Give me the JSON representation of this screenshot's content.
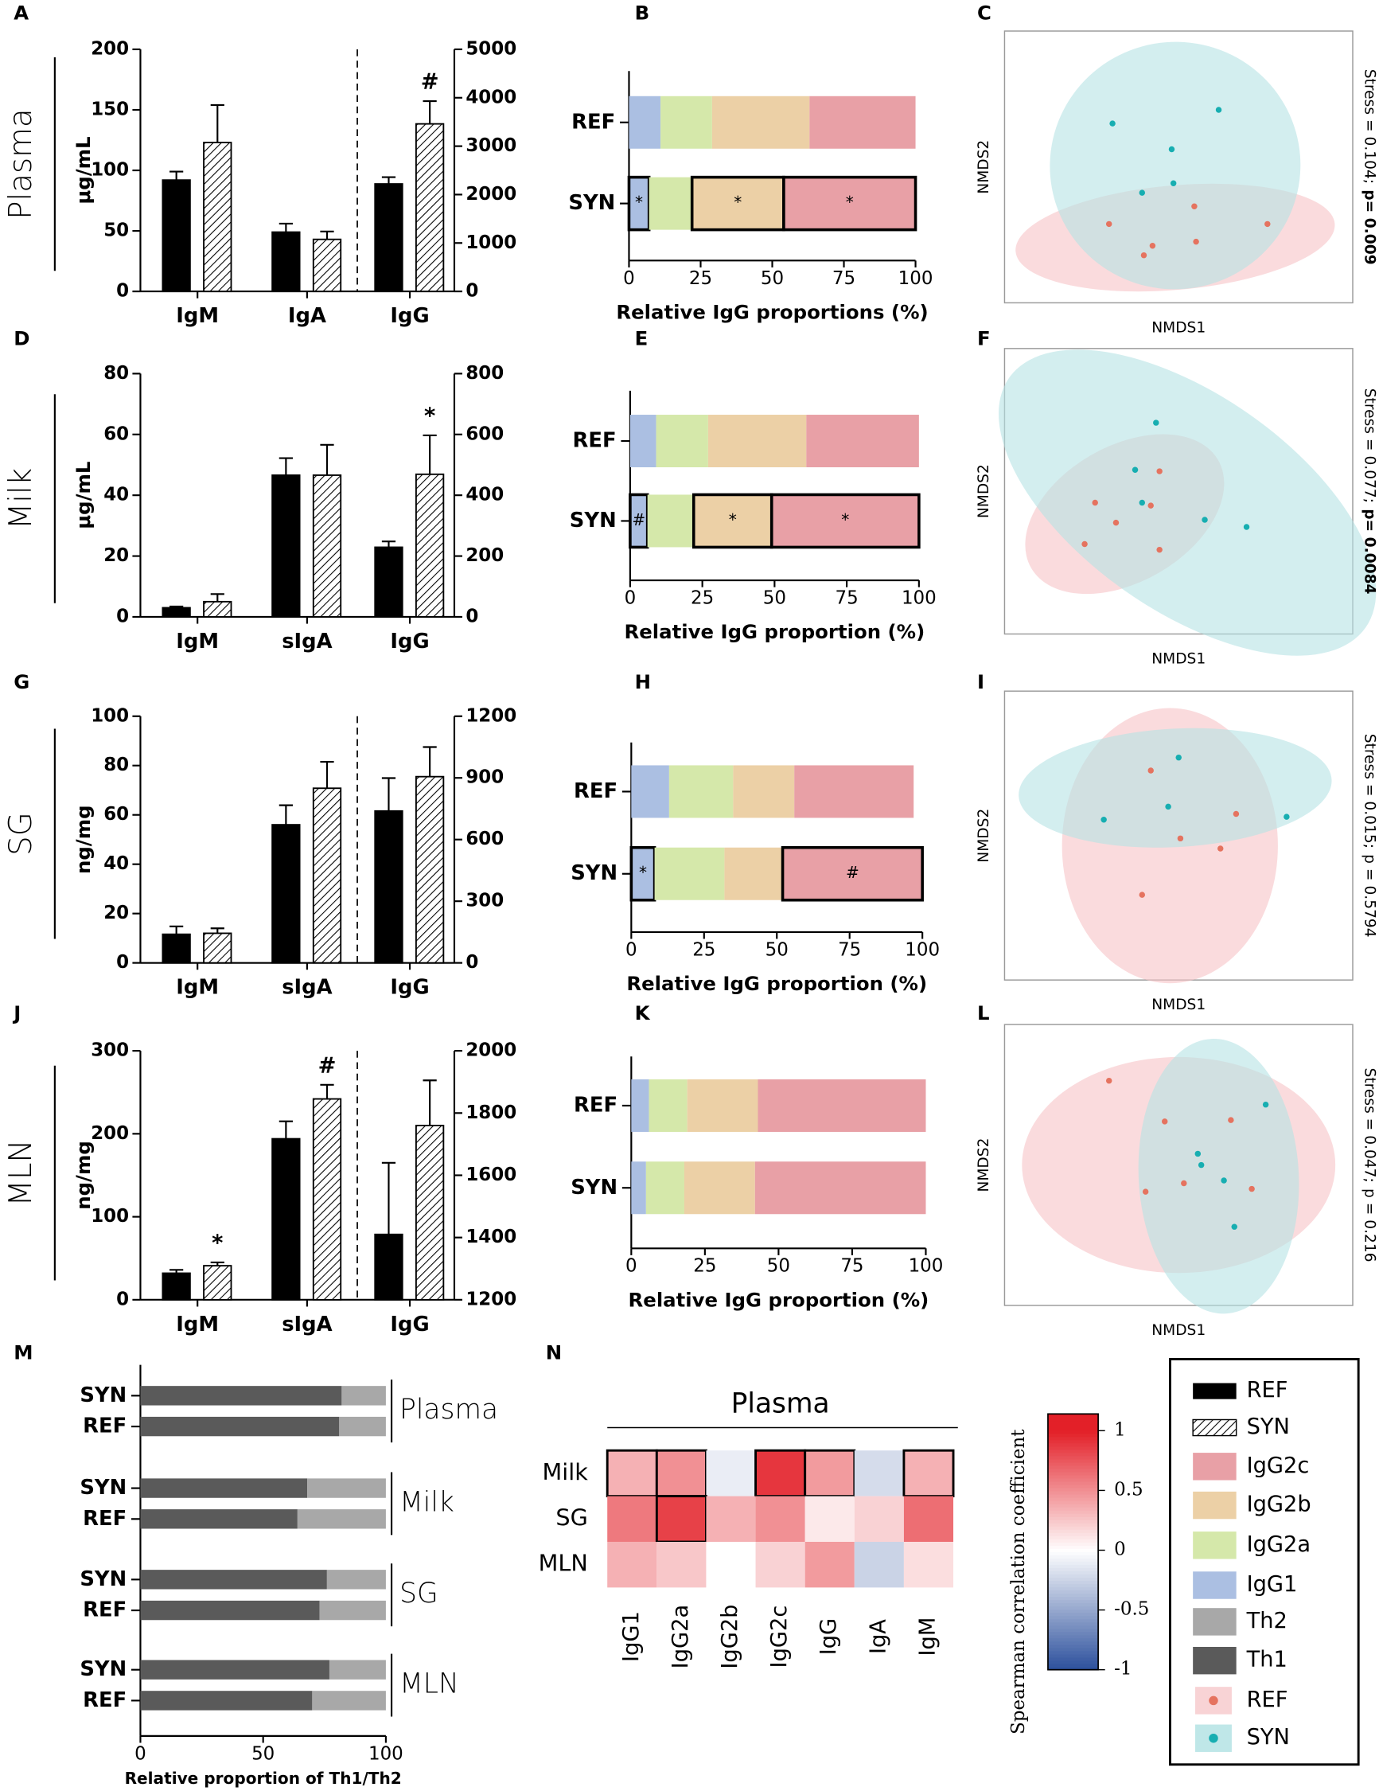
{
  "chart_data": [
    {
      "panel": "A",
      "type": "bar",
      "row_label": "Plasma",
      "ylabel": "μg/mL",
      "categories": [
        "IgM",
        "IgA",
        "IgG"
      ],
      "ylim": [
        0,
        200
      ],
      "yticks": [
        0,
        50,
        100,
        150,
        200
      ],
      "y2lim": [
        0,
        5000
      ],
      "y2ticks": [
        0,
        1000,
        2000,
        3000,
        4000,
        5000
      ],
      "divider": true,
      "series": [
        {
          "color": "#000000",
          "values": [
            92,
            49,
            null
          ],
          "errors": [
            7,
            7,
            null
          ]
        },
        {
          "color": "#000000",
          "pattern": "hatch",
          "values": [
            123,
            43,
            null
          ],
          "errors": [
            31,
            6.5,
            null
          ]
        },
        {
          "color": "#000000",
          "axis": "y2",
          "values": [
            null,
            null,
            2220
          ],
          "errors": [
            null,
            null,
            140
          ]
        },
        {
          "color": "#000000",
          "pattern": "hatch",
          "axis": "y2",
          "values": [
            null,
            null,
            3460
          ],
          "errors": [
            null,
            null,
            470
          ],
          "annotations": [
            null,
            null,
            "#"
          ]
        }
      ]
    },
    {
      "panel": "B",
      "type": "stacked_bar",
      "categories": [
        "REF",
        "SYN"
      ],
      "xlabel": "Relative IgG proportions (%)",
      "xlim": [
        0,
        100
      ],
      "xticks": [
        0,
        25,
        50,
        75,
        100
      ],
      "series": [
        {
          "color": "#abbfe2",
          "values": [
            11,
            7
          ],
          "annotations": [
            null,
            "*"
          ]
        },
        {
          "color": "#d5e8aa",
          "values": [
            18,
            15
          ]
        },
        {
          "color": "#ecd0a6",
          "values": [
            34,
            32
          ],
          "annotations": [
            null,
            "*"
          ]
        },
        {
          "color": "#e8a0a6",
          "values": [
            37,
            46
          ],
          "annotations": [
            null,
            "*"
          ]
        }
      ]
    },
    {
      "panel": "C",
      "type": "scatter",
      "xlabel": "NMDS1",
      "ylabel": "NMDS2",
      "note": [
        "Stress = 0.104;",
        "p= 0.009"
      ],
      "note_bold": true,
      "xlim": [
        -1,
        1
      ],
      "ylim": [
        -1,
        1
      ],
      "series": [
        {
          "color": "#e5735f",
          "ellipse": {
            "cx": -0.02,
            "cy": -0.52,
            "rx": 0.92,
            "ry": 0.3,
            "angle": -5,
            "color": "#f6c3c6"
          },
          "x": [
            0.09,
            0.51,
            -0.4,
            0.1,
            -0.15,
            -0.2
          ],
          "y": [
            -0.29,
            -0.42,
            -0.42,
            -0.55,
            -0.58,
            -0.65
          ]
        },
        {
          "color": "#17aeb1",
          "ellipse": {
            "cx": -0.02,
            "cy": 0.01,
            "rx": 0.72,
            "ry": 0.71,
            "angle": -10,
            "color": "#b5e2e4"
          },
          "x": [
            -0.38,
            0.23,
            -0.04,
            -0.03,
            -0.21
          ],
          "y": [
            0.32,
            0.42,
            0.13,
            -0.12,
            -0.19
          ]
        }
      ]
    },
    {
      "panel": "D",
      "type": "bar",
      "row_label": "Milk",
      "ylabel": "μg/mL",
      "categories": [
        "IgM",
        "sIgA",
        "IgG"
      ],
      "ylim": [
        0,
        80
      ],
      "yticks": [
        0,
        20,
        40,
        60,
        80
      ],
      "y2lim": [
        0,
        800
      ],
      "y2ticks": [
        0,
        200,
        400,
        600,
        800
      ],
      "divider": false,
      "series": [
        {
          "color": "#000000",
          "values": [
            3,
            46.6,
            null
          ],
          "errors": [
            0.4,
            5.6,
            null
          ]
        },
        {
          "color": "#000000",
          "pattern": "hatch",
          "values": [
            5,
            46.6,
            null
          ],
          "errors": [
            2.5,
            10,
            null
          ]
        },
        {
          "color": "#000000",
          "axis": "y2",
          "values": [
            null,
            null,
            229
          ],
          "errors": [
            null,
            null,
            19
          ]
        },
        {
          "color": "#000000",
          "pattern": "hatch",
          "axis": "y2",
          "values": [
            null,
            null,
            469
          ],
          "errors": [
            null,
            null,
            128
          ],
          "annotations": [
            null,
            null,
            "*"
          ]
        }
      ]
    },
    {
      "panel": "E",
      "type": "stacked_bar",
      "categories": [
        "REF",
        "SYN"
      ],
      "xlabel": "Relative IgG proportion (%)",
      "xlim": [
        0,
        100
      ],
      "xticks": [
        0,
        25,
        50,
        75,
        100
      ],
      "series": [
        {
          "color": "#abbfe2",
          "values": [
            9,
            6
          ],
          "annotations": [
            null,
            "#"
          ]
        },
        {
          "color": "#d5e8aa",
          "values": [
            18,
            16
          ]
        },
        {
          "color": "#ecd0a6",
          "values": [
            34,
            27
          ],
          "annotations": [
            null,
            "*"
          ]
        },
        {
          "color": "#e8a0a6",
          "values": [
            39,
            51
          ],
          "annotations": [
            null,
            "*"
          ]
        }
      ]
    },
    {
      "panel": "F",
      "type": "scatter",
      "xlabel": "NMDS1",
      "ylabel": "NMDS2",
      "note": [
        "Stress = 0.077;",
        "p= 0.0084"
      ],
      "note_bold": true,
      "xlim": [
        -1,
        1
      ],
      "ylim": [
        -1,
        1
      ],
      "series": [
        {
          "color": "#e5735f",
          "ellipse": {
            "cx": -0.31,
            "cy": -0.16,
            "rx": 0.62,
            "ry": 0.39,
            "angle": -30,
            "color": "#f6c3c6"
          },
          "x": [
            -0.11,
            -0.48,
            -0.16,
            -0.36,
            -0.54,
            -0.11
          ],
          "y": [
            0.14,
            -0.08,
            -0.1,
            -0.22,
            -0.37,
            -0.41
          ]
        },
        {
          "color": "#17aeb1",
          "ellipse": {
            "cx": 0.05,
            "cy": -0.08,
            "rx": 1.25,
            "ry": 0.62,
            "angle": 35,
            "color": "#b5e2e4"
          },
          "x": [
            -0.13,
            -0.25,
            -0.21,
            0.15,
            0.39
          ],
          "y": [
            0.48,
            0.15,
            -0.08,
            -0.2,
            -0.25
          ]
        }
      ]
    },
    {
      "panel": "G",
      "type": "bar",
      "row_label": "SG",
      "ylabel": "ng/mg",
      "categories": [
        "IgM",
        "sIgA",
        "IgG"
      ],
      "ylim": [
        0,
        100
      ],
      "yticks": [
        0,
        20,
        40,
        60,
        80,
        100
      ],
      "y2lim": [
        0,
        1200
      ],
      "y2ticks": [
        0,
        300,
        600,
        900,
        1200
      ],
      "divider": true,
      "series": [
        {
          "color": "#000000",
          "values": [
            11.6,
            56,
            null
          ],
          "errors": [
            3.2,
            7.9,
            null
          ]
        },
        {
          "color": "#000000",
          "pattern": "hatch",
          "values": [
            12,
            70.8,
            null
          ],
          "errors": [
            2,
            10.7,
            null
          ]
        },
        {
          "color": "#000000",
          "axis": "y2",
          "values": [
            null,
            null,
            739
          ],
          "errors": [
            null,
            null,
            160
          ]
        },
        {
          "color": "#000000",
          "pattern": "hatch",
          "axis": "y2",
          "values": [
            null,
            null,
            906
          ],
          "errors": [
            null,
            null,
            144
          ]
        }
      ]
    },
    {
      "panel": "H",
      "type": "stacked_bar",
      "categories": [
        "REF",
        "SYN"
      ],
      "xlabel": "Relative IgG proportion (%)",
      "xlim": [
        0,
        100
      ],
      "xticks": [
        0,
        25,
        50,
        75,
        100
      ],
      "series": [
        {
          "color": "#abbfe2",
          "values": [
            13,
            8
          ],
          "annotations": [
            null,
            "*"
          ]
        },
        {
          "color": "#d5e8aa",
          "values": [
            22,
            24
          ]
        },
        {
          "color": "#ecd0a6",
          "values": [
            21,
            20
          ]
        },
        {
          "color": "#e8a0a6",
          "values": [
            41,
            48
          ],
          "annotations": [
            null,
            "#"
          ]
        }
      ]
    },
    {
      "panel": "I",
      "type": "scatter",
      "xlabel": "NMDS1",
      "ylabel": "NMDS2",
      "note": [
        "Stress = 0.015;",
        "p = 0.5794"
      ],
      "note_bold": false,
      "xlim": [
        -1,
        1
      ],
      "ylim": [
        -1,
        1
      ],
      "series": [
        {
          "color": "#e5735f",
          "ellipse": {
            "cx": -0.05,
            "cy": -0.07,
            "rx": 0.62,
            "ry": 0.79,
            "angle": 0,
            "color": "#f6c3c6"
          },
          "x": [
            -0.16,
            0.33,
            0.01,
            0.24,
            -0.21
          ],
          "y": [
            0.45,
            0.15,
            -0.02,
            -0.09,
            -0.41
          ]
        },
        {
          "color": "#17aeb1",
          "ellipse": {
            "cx": -0.02,
            "cy": 0.33,
            "rx": 0.9,
            "ry": 0.34,
            "angle": -3,
            "color": "#b5e2e4"
          },
          "x": [
            0,
            -0.06,
            -0.43,
            0.62
          ],
          "y": [
            0.54,
            0.2,
            0.11,
            0.13
          ]
        }
      ]
    },
    {
      "panel": "J",
      "type": "bar",
      "row_label": "MLN",
      "ylabel": "ng/mg",
      "categories": [
        "IgM",
        "sIgA",
        "IgG"
      ],
      "ylim": [
        0,
        300
      ],
      "yticks": [
        0,
        100,
        200,
        300
      ],
      "y2lim": [
        1200,
        2000
      ],
      "y2ticks": [
        1200,
        1400,
        1600,
        1800,
        2000
      ],
      "divider": true,
      "series": [
        {
          "color": "#000000",
          "values": [
            32,
            194,
            null
          ],
          "errors": [
            4,
            21,
            null
          ]
        },
        {
          "color": "#000000",
          "pattern": "hatch",
          "values": [
            41,
            242,
            null
          ],
          "errors": [
            4,
            17,
            null
          ],
          "annotations": [
            "*",
            "#",
            null
          ]
        },
        {
          "color": "#000000",
          "axis": "y2",
          "values": [
            null,
            null,
            1410
          ],
          "errors": [
            null,
            null,
            230
          ]
        },
        {
          "color": "#000000",
          "pattern": "hatch",
          "axis": "y2",
          "values": [
            null,
            null,
            1760
          ],
          "errors": [
            null,
            null,
            145
          ]
        }
      ]
    },
    {
      "panel": "K",
      "type": "stacked_bar",
      "categories": [
        "REF",
        "SYN"
      ],
      "xlabel": "Relative IgG proportion (%)",
      "xlim": [
        0,
        100
      ],
      "xticks": [
        0,
        25,
        50,
        75,
        100
      ],
      "series": [
        {
          "color": "#abbfe2",
          "values": [
            6,
            5
          ]
        },
        {
          "color": "#d5e8aa",
          "values": [
            13,
            13
          ]
        },
        {
          "color": "#ecd0a6",
          "values": [
            24,
            24
          ]
        },
        {
          "color": "#e8a0a6",
          "values": [
            57,
            58
          ]
        }
      ]
    },
    {
      "panel": "L",
      "type": "scatter",
      "xlabel": "NMDS1",
      "ylabel": "NMDS2",
      "note": [
        "Stress = 0.047;",
        "p = 0.216"
      ],
      "note_bold": false,
      "xlim": [
        -1,
        1
      ],
      "ylim": [
        -1,
        1
      ],
      "series": [
        {
          "color": "#e5735f",
          "ellipse": {
            "cx": 0,
            "cy": 0,
            "rx": 0.9,
            "ry": 0.62,
            "angle": 0,
            "color": "#f6c3c6"
          },
          "x": [
            -0.08,
            0.3,
            -0.4,
            0.03,
            -0.19,
            0.42
          ],
          "y": [
            0.31,
            0.32,
            0.6,
            -0.13,
            -0.19,
            -0.17
          ]
        },
        {
          "color": "#17aeb1",
          "ellipse": {
            "cx": 0.23,
            "cy": -0.08,
            "rx": 0.46,
            "ry": 0.79,
            "angle": -3,
            "color": "#b5e2e4"
          },
          "x": [
            0.5,
            0.11,
            0.13,
            0.26,
            0.32
          ],
          "y": [
            0.43,
            0.08,
            0,
            -0.11,
            -0.44
          ]
        }
      ]
    },
    {
      "panel": "M",
      "type": "stacked_bar",
      "categories": [
        "SYN",
        "REF",
        "SYN",
        "REF",
        "SYN",
        "REF",
        "SYN",
        "REF"
      ],
      "groups": [
        "Plasma",
        "Milk",
        "SG",
        "MLN"
      ],
      "xlabel": "Relative proportion of Th1/Th2",
      "xlim": [
        0,
        100
      ],
      "xticks": [
        0,
        50,
        100
      ],
      "series": [
        {
          "color": "#5a5a5a",
          "values": [
            82,
            81,
            68,
            64,
            76,
            73,
            77,
            70
          ]
        },
        {
          "color": "#a8a8a8",
          "values": [
            18,
            19,
            32,
            36,
            24,
            27,
            23,
            30
          ]
        }
      ]
    },
    {
      "panel": "N",
      "type": "heatmap",
      "title": "Plasma",
      "rows": [
        "Milk",
        "SG",
        "MLN"
      ],
      "columns": [
        "IgG1",
        "IgG2a",
        "IgG2b",
        "IgG2c",
        "IgG",
        "IgA",
        "IgM"
      ],
      "values": [
        [
          0.35,
          0.5,
          -0.1,
          0.9,
          0.45,
          -0.2,
          0.35
        ],
        [
          0.6,
          0.85,
          0.35,
          0.5,
          0.1,
          0.2,
          0.65
        ],
        [
          0.35,
          0.25,
          0,
          0.2,
          0.45,
          -0.25,
          0.15
        ]
      ],
      "outlined": [
        [
          true,
          true,
          false,
          true,
          true,
          false,
          true
        ],
        [
          false,
          true,
          false,
          false,
          false,
          false,
          false
        ],
        [
          false,
          false,
          false,
          false,
          false,
          false,
          false
        ]
      ],
      "colorbar_label": "Spearman correlation coefficient",
      "zlim": [
        -1,
        1.14
      ],
      "zticks": [
        -1,
        -0.5,
        0,
        0.5,
        1
      ],
      "colors": [
        "#2b4f9c",
        "#ffffff",
        "#e32028"
      ]
    }
  ],
  "legend": [
    {
      "name": "REF",
      "kind": "fill",
      "color": "#000000"
    },
    {
      "name": "SYN",
      "kind": "hatch",
      "color": "#000000"
    },
    {
      "name": "IgG2c",
      "kind": "fill",
      "color": "#e8a0a6"
    },
    {
      "name": "IgG2b",
      "kind": "fill",
      "color": "#ecd0a6"
    },
    {
      "name": "IgG2a",
      "kind": "fill",
      "color": "#d5e8aa"
    },
    {
      "name": "IgG1",
      "kind": "fill",
      "color": "#abbfe2"
    },
    {
      "name": "Th2",
      "kind": "fill",
      "color": "#a8a8a8"
    },
    {
      "name": "Th1",
      "kind": "fill",
      "color": "#5a5a5a"
    },
    {
      "name": "REF",
      "kind": "dot",
      "color": "#e5735f",
      "halo": "#f8d3d5"
    },
    {
      "name": "SYN",
      "kind": "dot",
      "color": "#17aeb1",
      "halo": "#bfe7e8"
    }
  ]
}
